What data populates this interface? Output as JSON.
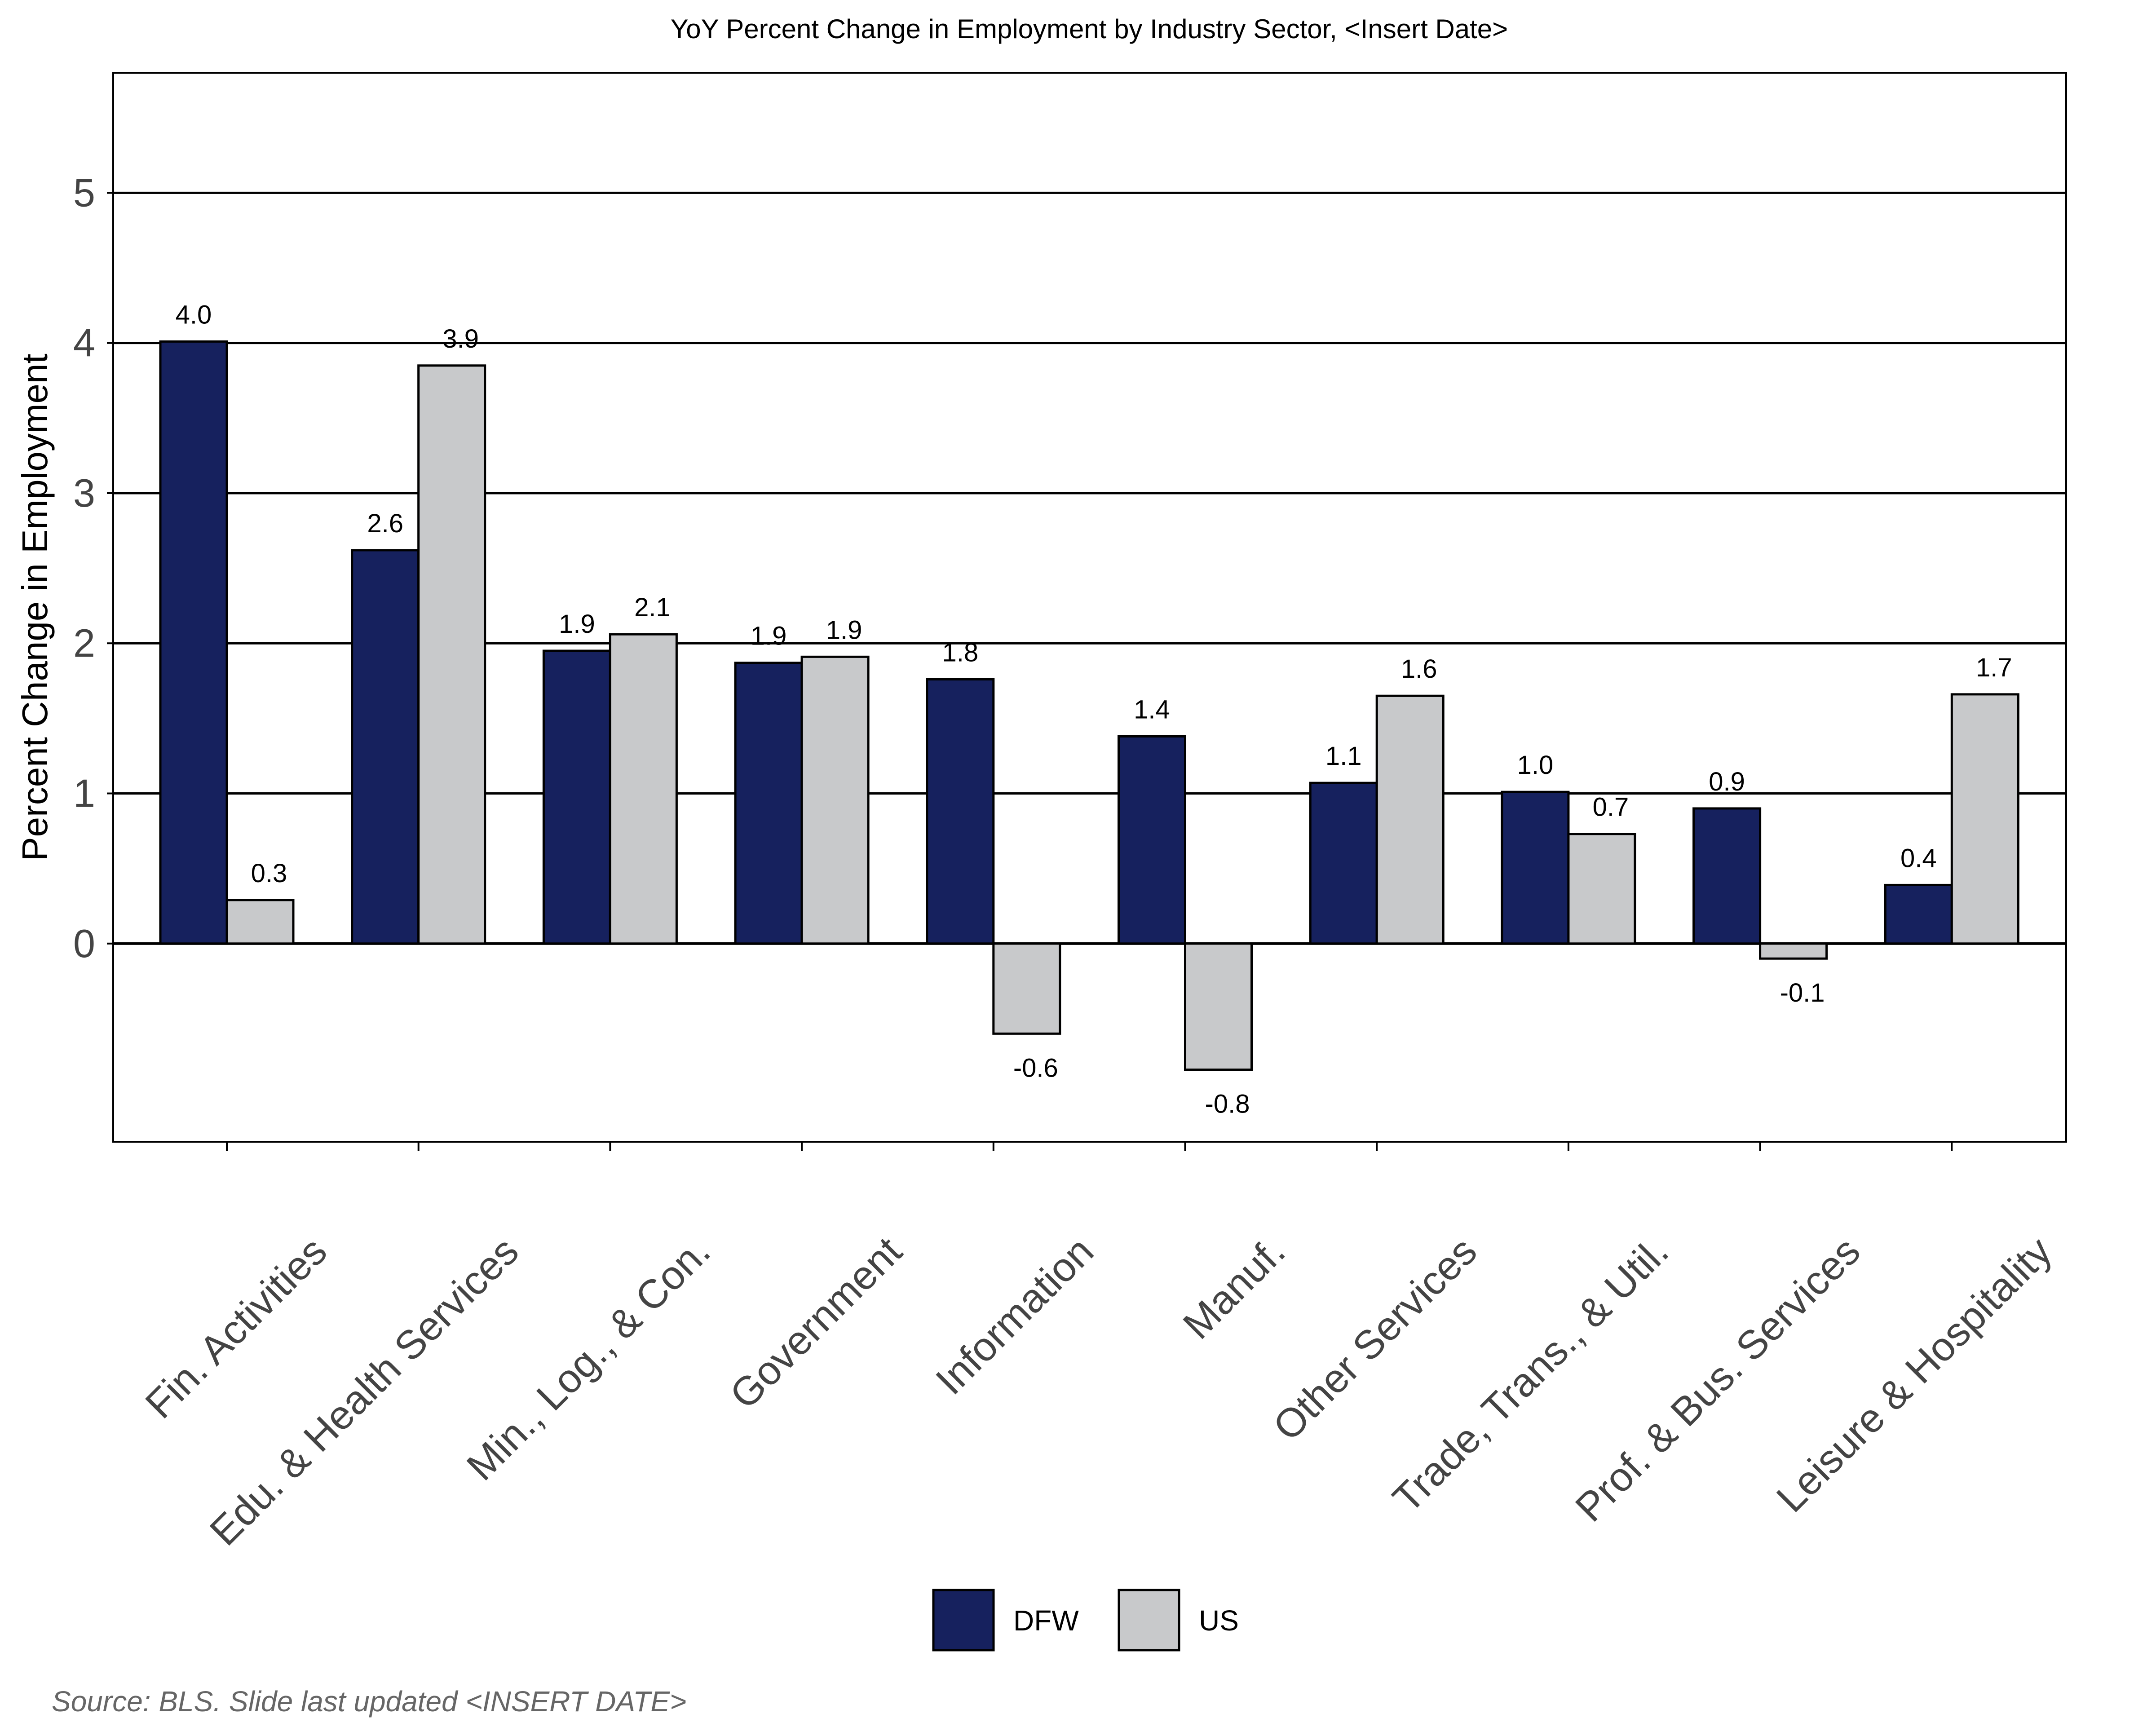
{
  "chart_data": {
    "type": "bar",
    "title": "YoY Percent Change in Employment by Industry Sector, <Insert Date>",
    "ylabel": "Percent Change in Employment",
    "xlabel": "",
    "ylim": [
      -1.32,
      5.8
    ],
    "yticks": [
      0,
      1,
      2,
      3,
      4,
      5
    ],
    "grid": true,
    "legend_position": "bottom",
    "categories": [
      "Fin. Activities",
      "Edu. & Health Services",
      "Min., Log., & Con.",
      "Government",
      "Information",
      "Manuf.",
      "Other Services",
      "Trade, Trans., & Util.",
      "Prof. & Bus. Services",
      "Leisure & Hospitality"
    ],
    "series": [
      {
        "name": "DFW",
        "color": "#16215e",
        "values": [
          4.01,
          2.62,
          1.95,
          1.87,
          1.76,
          1.38,
          1.07,
          1.01,
          0.9,
          0.39
        ],
        "labels": [
          "4.0",
          "2.6",
          "1.9",
          "1.9",
          "1.8",
          "1.4",
          "1.1",
          "1.0",
          "0.9",
          "0.4"
        ]
      },
      {
        "name": "US",
        "color": "#c8c9cb",
        "values": [
          0.29,
          3.85,
          2.06,
          1.91,
          -0.6,
          -0.84,
          1.65,
          0.73,
          -0.1,
          1.66
        ],
        "labels": [
          "0.3",
          "3.9",
          "2.1",
          "1.9",
          "-0.6",
          "-0.8",
          "1.6",
          "0.7",
          "-0.1",
          "1.7"
        ]
      }
    ],
    "source_note": "Source: BLS. Slide last updated <INSERT DATE>"
  }
}
